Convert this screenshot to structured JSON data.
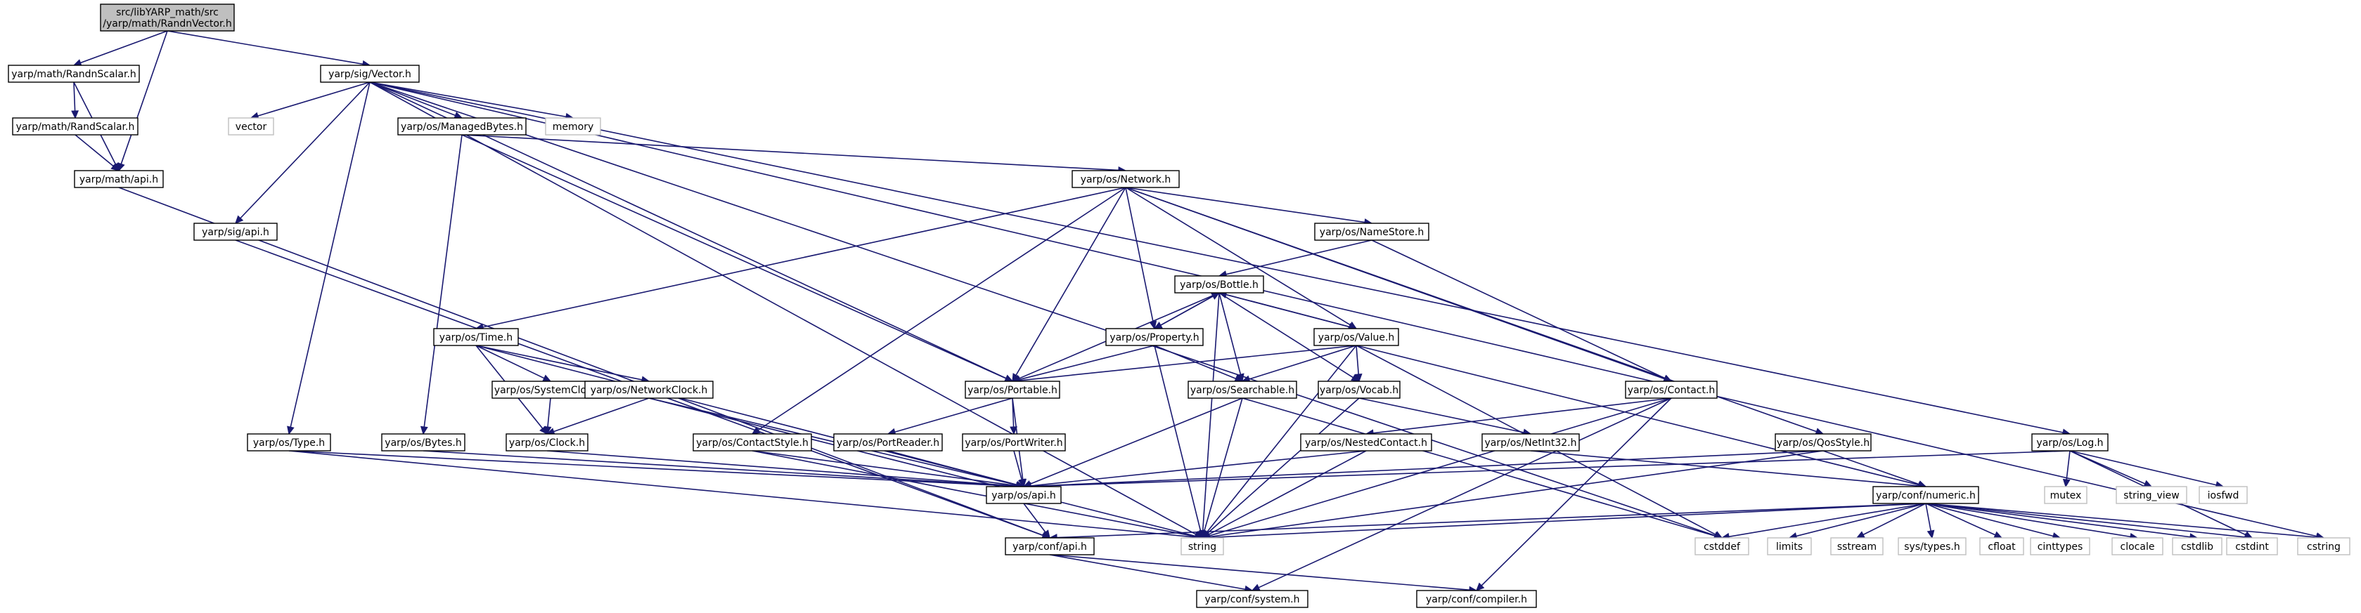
{
  "graph": {
    "title": "src/libYARP_math/src/yarp/math/RandnVector.h",
    "colors": {
      "edge": "#191970",
      "root_fill": "#bfbfbf",
      "system_border": "#bfbfbf",
      "node_border": "#000000",
      "text": "#000000"
    },
    "nodes": [
      {
        "id": "root",
        "lines": [
          "src/libYARP_math/src",
          "/yarp/math/RandnVector.h"
        ],
        "kind": "root"
      },
      {
        "id": "randnscalar",
        "lines": [
          "yarp/math/RandnScalar.h"
        ],
        "kind": "include"
      },
      {
        "id": "sigvector",
        "lines": [
          "yarp/sig/Vector.h"
        ],
        "kind": "include"
      },
      {
        "id": "randscalar",
        "lines": [
          "yarp/math/RandScalar.h"
        ],
        "kind": "include"
      },
      {
        "id": "mathapi",
        "lines": [
          "yarp/math/api.h"
        ],
        "kind": "include"
      },
      {
        "id": "vector",
        "lines": [
          "vector"
        ],
        "kind": "system"
      },
      {
        "id": "managedbytes",
        "lines": [
          "yarp/os/ManagedBytes.h"
        ],
        "kind": "include"
      },
      {
        "id": "memory",
        "lines": [
          "memory"
        ],
        "kind": "system"
      },
      {
        "id": "sigapi",
        "lines": [
          "yarp/sig/api.h"
        ],
        "kind": "include"
      },
      {
        "id": "network",
        "lines": [
          "yarp/os/Network.h"
        ],
        "kind": "include"
      },
      {
        "id": "namestore",
        "lines": [
          "yarp/os/NameStore.h"
        ],
        "kind": "include"
      },
      {
        "id": "bottle",
        "lines": [
          "yarp/os/Bottle.h"
        ],
        "kind": "include"
      },
      {
        "id": "time",
        "lines": [
          "yarp/os/Time.h"
        ],
        "kind": "include"
      },
      {
        "id": "property",
        "lines": [
          "yarp/os/Property.h"
        ],
        "kind": "include"
      },
      {
        "id": "value",
        "lines": [
          "yarp/os/Value.h"
        ],
        "kind": "include"
      },
      {
        "id": "systemclock",
        "lines": [
          "yarp/os/SystemClock.h"
        ],
        "kind": "include"
      },
      {
        "id": "networkclock",
        "lines": [
          "yarp/os/NetworkClock.h"
        ],
        "kind": "include"
      },
      {
        "id": "portable",
        "lines": [
          "yarp/os/Portable.h"
        ],
        "kind": "include"
      },
      {
        "id": "searchable",
        "lines": [
          "yarp/os/Searchable.h"
        ],
        "kind": "include"
      },
      {
        "id": "vocab",
        "lines": [
          "yarp/os/Vocab.h"
        ],
        "kind": "include"
      },
      {
        "id": "contact",
        "lines": [
          "yarp/os/Contact.h"
        ],
        "kind": "include"
      },
      {
        "id": "type",
        "lines": [
          "yarp/os/Type.h"
        ],
        "kind": "include"
      },
      {
        "id": "bytes",
        "lines": [
          "yarp/os/Bytes.h"
        ],
        "kind": "include"
      },
      {
        "id": "clock",
        "lines": [
          "yarp/os/Clock.h"
        ],
        "kind": "include"
      },
      {
        "id": "contactstyle",
        "lines": [
          "yarp/os/ContactStyle.h"
        ],
        "kind": "include"
      },
      {
        "id": "portreader",
        "lines": [
          "yarp/os/PortReader.h"
        ],
        "kind": "include"
      },
      {
        "id": "portwriter",
        "lines": [
          "yarp/os/PortWriter.h"
        ],
        "kind": "include"
      },
      {
        "id": "nestedcontact",
        "lines": [
          "yarp/os/NestedContact.h"
        ],
        "kind": "include"
      },
      {
        "id": "netint32",
        "lines": [
          "yarp/os/NetInt32.h"
        ],
        "kind": "include"
      },
      {
        "id": "qosstyle",
        "lines": [
          "yarp/os/QosStyle.h"
        ],
        "kind": "include"
      },
      {
        "id": "log",
        "lines": [
          "yarp/os/Log.h"
        ],
        "kind": "include"
      },
      {
        "id": "osapi",
        "lines": [
          "yarp/os/api.h"
        ],
        "kind": "include"
      },
      {
        "id": "numeric",
        "lines": [
          "yarp/conf/numeric.h"
        ],
        "kind": "include"
      },
      {
        "id": "mutex",
        "lines": [
          "mutex"
        ],
        "kind": "system"
      },
      {
        "id": "string_view",
        "lines": [
          "string_view"
        ],
        "kind": "system"
      },
      {
        "id": "iosfwd",
        "lines": [
          "iosfwd"
        ],
        "kind": "system"
      },
      {
        "id": "string",
        "lines": [
          "string"
        ],
        "kind": "system"
      },
      {
        "id": "confapi",
        "lines": [
          "yarp/conf/api.h"
        ],
        "kind": "include"
      },
      {
        "id": "cstddef",
        "lines": [
          "cstddef"
        ],
        "kind": "system"
      },
      {
        "id": "limits",
        "lines": [
          "limits"
        ],
        "kind": "system"
      },
      {
        "id": "sstream",
        "lines": [
          "sstream"
        ],
        "kind": "system"
      },
      {
        "id": "systypes",
        "lines": [
          "sys/types.h"
        ],
        "kind": "system"
      },
      {
        "id": "cfloat",
        "lines": [
          "cfloat"
        ],
        "kind": "system"
      },
      {
        "id": "cinttypes",
        "lines": [
          "cinttypes"
        ],
        "kind": "system"
      },
      {
        "id": "clocale",
        "lines": [
          "clocale"
        ],
        "kind": "system"
      },
      {
        "id": "cstdlib",
        "lines": [
          "cstdlib"
        ],
        "kind": "system"
      },
      {
        "id": "cstdint",
        "lines": [
          "cstdint"
        ],
        "kind": "system"
      },
      {
        "id": "cstring",
        "lines": [
          "cstring"
        ],
        "kind": "system"
      },
      {
        "id": "confsystem",
        "lines": [
          "yarp/conf/system.h"
        ],
        "kind": "include"
      },
      {
        "id": "confcompiler",
        "lines": [
          "yarp/conf/compiler.h"
        ],
        "kind": "include"
      }
    ],
    "edges": [
      [
        "root",
        "randnscalar"
      ],
      [
        "root",
        "sigvector"
      ],
      [
        "root",
        "mathapi"
      ],
      [
        "randnscalar",
        "randscalar"
      ],
      [
        "randnscalar",
        "mathapi"
      ],
      [
        "randscalar",
        "mathapi"
      ],
      [
        "mathapi",
        "confapi"
      ],
      [
        "sigvector",
        "vector"
      ],
      [
        "sigvector",
        "managedbytes"
      ],
      [
        "sigvector",
        "memory"
      ],
      [
        "sigvector",
        "sigapi"
      ],
      [
        "sigvector",
        "type"
      ],
      [
        "sigvector",
        "portable"
      ],
      [
        "sigvector",
        "log"
      ],
      [
        "sigvector",
        "string"
      ],
      [
        "sigvector",
        "cstddef"
      ],
      [
        "sigvector",
        "cstring"
      ],
      [
        "sigapi",
        "confapi"
      ],
      [
        "managedbytes",
        "network"
      ],
      [
        "managedbytes",
        "bytes"
      ],
      [
        "managedbytes",
        "portable"
      ],
      [
        "network",
        "namestore"
      ],
      [
        "network",
        "time"
      ],
      [
        "network",
        "property"
      ],
      [
        "network",
        "value"
      ],
      [
        "network",
        "portable"
      ],
      [
        "network",
        "contact"
      ],
      [
        "network",
        "contactstyle"
      ],
      [
        "network",
        "qosstyle"
      ],
      [
        "namestore",
        "bottle"
      ],
      [
        "namestore",
        "contact"
      ],
      [
        "bottle",
        "property"
      ],
      [
        "bottle",
        "value"
      ],
      [
        "bottle",
        "portable"
      ],
      [
        "bottle",
        "searchable"
      ],
      [
        "bottle",
        "vocab"
      ],
      [
        "bottle",
        "string"
      ],
      [
        "property",
        "bottle"
      ],
      [
        "property",
        "portable"
      ],
      [
        "property",
        "searchable"
      ],
      [
        "property",
        "string"
      ],
      [
        "value",
        "bottle"
      ],
      [
        "value",
        "portable"
      ],
      [
        "value",
        "searchable"
      ],
      [
        "value",
        "vocab"
      ],
      [
        "value",
        "numeric"
      ],
      [
        "value",
        "string"
      ],
      [
        "value",
        "cstddef"
      ],
      [
        "time",
        "systemclock"
      ],
      [
        "time",
        "networkclock"
      ],
      [
        "time",
        "clock"
      ],
      [
        "time",
        "osapi"
      ],
      [
        "systemclock",
        "clock"
      ],
      [
        "networkclock",
        "clock"
      ],
      [
        "networkclock",
        "osapi"
      ],
      [
        "networkclock",
        "string"
      ],
      [
        "clock",
        "osapi"
      ],
      [
        "portable",
        "portreader"
      ],
      [
        "portable",
        "portwriter"
      ],
      [
        "portable",
        "osapi"
      ],
      [
        "portreader",
        "osapi"
      ],
      [
        "portwriter",
        "osapi"
      ],
      [
        "searchable",
        "osapi"
      ],
      [
        "searchable",
        "string"
      ],
      [
        "searchable",
        "cstddef"
      ],
      [
        "vocab",
        "netint32"
      ],
      [
        "vocab",
        "string"
      ],
      [
        "netint32",
        "numeric"
      ],
      [
        "contact",
        "nestedcontact"
      ],
      [
        "contact",
        "string"
      ],
      [
        "contact",
        "confsystem"
      ],
      [
        "contact",
        "confcompiler"
      ],
      [
        "nestedcontact",
        "osapi"
      ],
      [
        "nestedcontact",
        "string"
      ],
      [
        "contactstyle",
        "osapi"
      ],
      [
        "contactstyle",
        "string"
      ],
      [
        "qosstyle",
        "osapi"
      ],
      [
        "qosstyle",
        "numeric"
      ],
      [
        "qosstyle",
        "string"
      ],
      [
        "type",
        "osapi"
      ],
      [
        "type",
        "string"
      ],
      [
        "bytes",
        "osapi"
      ],
      [
        "log",
        "osapi"
      ],
      [
        "log",
        "mutex"
      ],
      [
        "log",
        "string_view"
      ],
      [
        "log",
        "iosfwd"
      ],
      [
        "log",
        "cstdint"
      ],
      [
        "osapi",
        "confapi"
      ],
      [
        "numeric",
        "confapi"
      ],
      [
        "numeric",
        "string"
      ],
      [
        "numeric",
        "cstddef"
      ],
      [
        "numeric",
        "limits"
      ],
      [
        "numeric",
        "sstream"
      ],
      [
        "numeric",
        "systypes"
      ],
      [
        "numeric",
        "cfloat"
      ],
      [
        "numeric",
        "cinttypes"
      ],
      [
        "numeric",
        "clocale"
      ],
      [
        "numeric",
        "cstdlib"
      ],
      [
        "numeric",
        "cstdint"
      ],
      [
        "numeric",
        "cstring"
      ],
      [
        "confapi",
        "confsystem"
      ],
      [
        "confapi",
        "confcompiler"
      ]
    ]
  }
}
